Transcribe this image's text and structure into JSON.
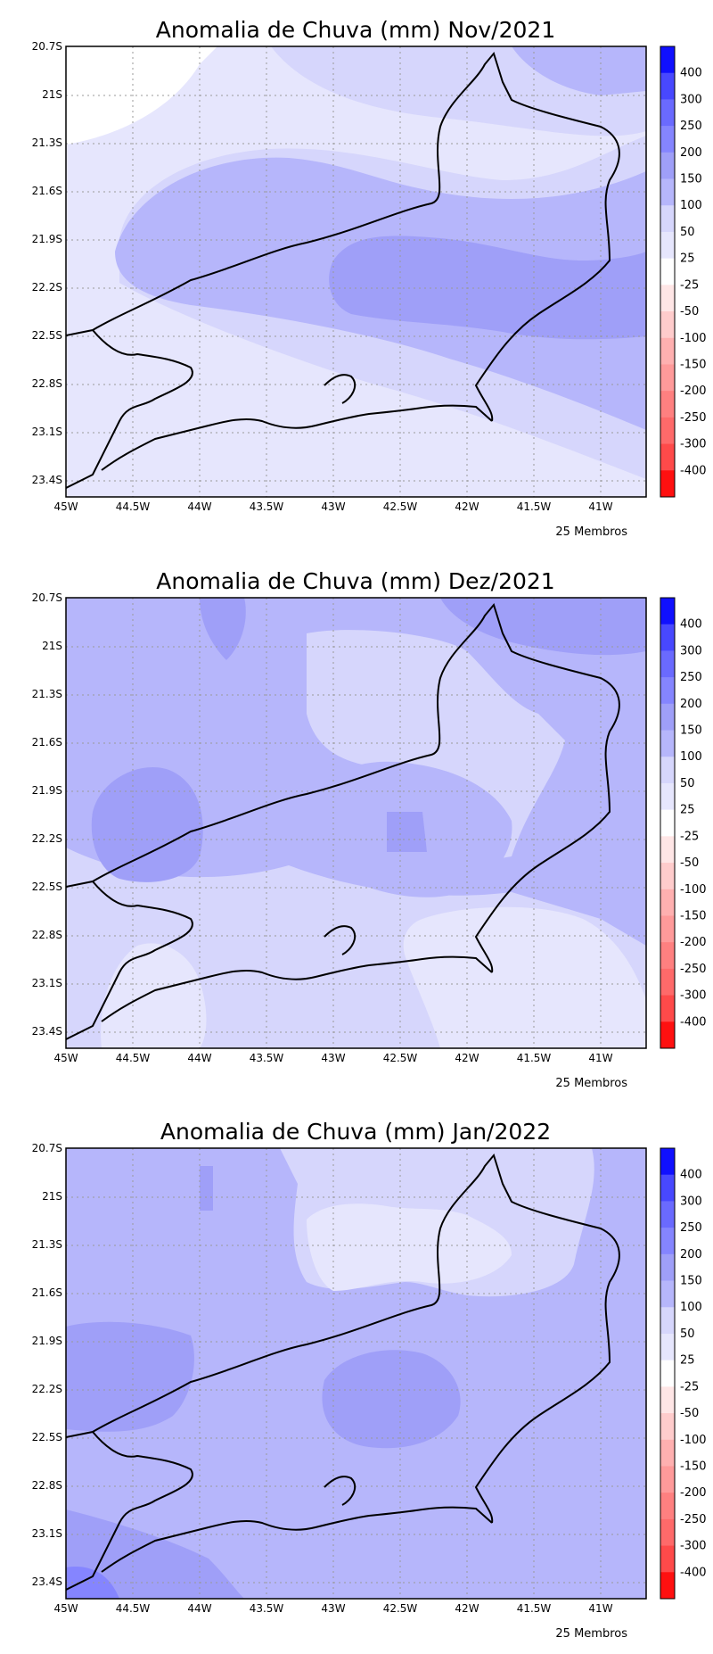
{
  "colors": {
    "c400": "#1010ff",
    "c300": "#4848ff",
    "c250": "#6a6aff",
    "c200": "#8585ff",
    "c150": "#9f9ff8",
    "c100": "#b6b6fb",
    "c50": "#d6d6fc",
    "c25": "#e6e6fd",
    "c0": "#ffffff",
    "n25": "#ffe6e6",
    "n50": "#ffcccc",
    "n100": "#ffb0b0",
    "n150": "#ff9a9a",
    "n200": "#ff8080",
    "n250": "#ff6a6a",
    "n300": "#ff4a4a",
    "n400": "#ff1010"
  },
  "legend_labels": [
    "400",
    "300",
    "250",
    "200",
    "150",
    "100",
    "50",
    "25",
    "-25",
    "-50",
    "-100",
    "-150",
    "-200",
    "-250",
    "-300",
    "-400"
  ],
  "y_ticks": [
    "20.7S",
    "21S",
    "21.3S",
    "21.6S",
    "21.9S",
    "22.2S",
    "22.5S",
    "22.8S",
    "23.1S",
    "23.4S"
  ],
  "x_ticks": [
    "45W",
    "44.5W",
    "44W",
    "43.5W",
    "43W",
    "42.5W",
    "42W",
    "41.5W",
    "41W"
  ],
  "panels": [
    {
      "title": "Anomalia de Chuva (mm) Nov/2021",
      "members": "25 Membros"
    },
    {
      "title": "Anomalia de Chuva (mm) Dez/2021",
      "members": "25 Membros"
    },
    {
      "title": "Anomalia de Chuva (mm) Jan/2022",
      "members": "25 Membros"
    }
  ]
}
